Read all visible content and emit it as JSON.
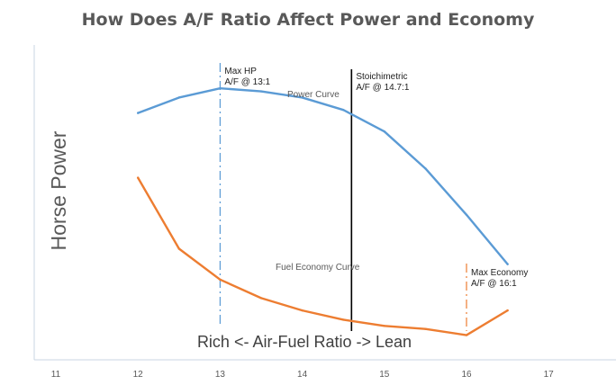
{
  "chart_data": {
    "type": "line",
    "title": "How Does A/F Ratio Affect Power and Economy",
    "ylabel": "Horse Power",
    "xlabel": "Rich <-  Air-Fuel Ratio  -> Lean",
    "xlim": [
      11,
      17
    ],
    "ylim": [
      0,
      100
    ],
    "xticks": [
      "11",
      "12",
      "13",
      "14",
      "15",
      "16",
      "17"
    ],
    "grid": false,
    "colors": {
      "power": "#5b9bd5",
      "economy": "#ed7d31",
      "stoich": "#000000",
      "axis": "#c9d6e3"
    },
    "series": [
      {
        "name": "Power Curve",
        "x": [
          12,
          12.5,
          13,
          13.5,
          14,
          14.5,
          15,
          15.5,
          16,
          16.5
        ],
        "values": [
          80,
          85,
          88,
          87,
          85,
          81,
          74,
          62,
          47,
          31
        ]
      },
      {
        "name": "Fuel Economy Curve",
        "x": [
          12,
          12.5,
          13,
          13.5,
          14,
          14.5,
          15,
          15.5,
          16,
          16.5
        ],
        "values": [
          59,
          36,
          26,
          20,
          16,
          13,
          11,
          10,
          8,
          16
        ]
      }
    ],
    "annotations": [
      {
        "id": "max-hp",
        "x": 13,
        "lines": [
          "Max HP",
          "A/F @ 13:1"
        ],
        "style": "dashdot",
        "color": "#5b9bd5"
      },
      {
        "id": "stoich",
        "x": 14.6,
        "lines": [
          "Stoichimetric",
          "A/F @ 14.7:1"
        ],
        "style": "solid",
        "color": "#000000"
      },
      {
        "id": "max-economy",
        "x": 16,
        "lines": [
          "Max Economy",
          "A/F @ 16:1"
        ],
        "style": "dashdot",
        "color": "#ed7d31"
      }
    ]
  }
}
